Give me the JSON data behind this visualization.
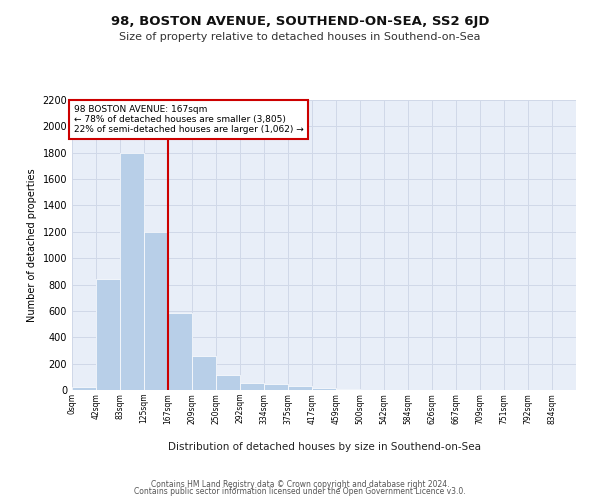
{
  "title": "98, BOSTON AVENUE, SOUTHEND-ON-SEA, SS2 6JD",
  "subtitle": "Size of property relative to detached houses in Southend-on-Sea",
  "xlabel": "Distribution of detached houses by size in Southend-on-Sea",
  "ylabel": "Number of detached properties",
  "bin_labels": [
    "0sqm",
    "42sqm",
    "83sqm",
    "125sqm",
    "167sqm",
    "209sqm",
    "250sqm",
    "292sqm",
    "334sqm",
    "375sqm",
    "417sqm",
    "459sqm",
    "500sqm",
    "542sqm",
    "584sqm",
    "626sqm",
    "667sqm",
    "709sqm",
    "751sqm",
    "792sqm",
    "834sqm"
  ],
  "bar_values": [
    25,
    840,
    1800,
    1200,
    585,
    260,
    115,
    50,
    45,
    30,
    15,
    5,
    0,
    0,
    0,
    0,
    0,
    0,
    0,
    0,
    0
  ],
  "bin_edges": [
    0,
    42,
    83,
    125,
    167,
    209,
    250,
    292,
    334,
    375,
    417,
    459,
    500,
    542,
    584,
    626,
    667,
    709,
    751,
    792,
    834
  ],
  "bar_color": "#b8cfe8",
  "grid_color": "#d0d8e8",
  "bg_color": "#e8eef8",
  "red_line_x": 167,
  "annotation_text": "98 BOSTON AVENUE: 167sqm\n← 78% of detached houses are smaller (3,805)\n22% of semi-detached houses are larger (1,062) →",
  "annotation_box_color": "#ffffff",
  "annotation_border_color": "#cc0000",
  "footer_line1": "Contains HM Land Registry data © Crown copyright and database right 2024.",
  "footer_line2": "Contains public sector information licensed under the Open Government Licence v3.0.",
  "ylim": [
    0,
    2200
  ],
  "yticks": [
    0,
    200,
    400,
    600,
    800,
    1000,
    1200,
    1400,
    1600,
    1800,
    2000,
    2200
  ]
}
